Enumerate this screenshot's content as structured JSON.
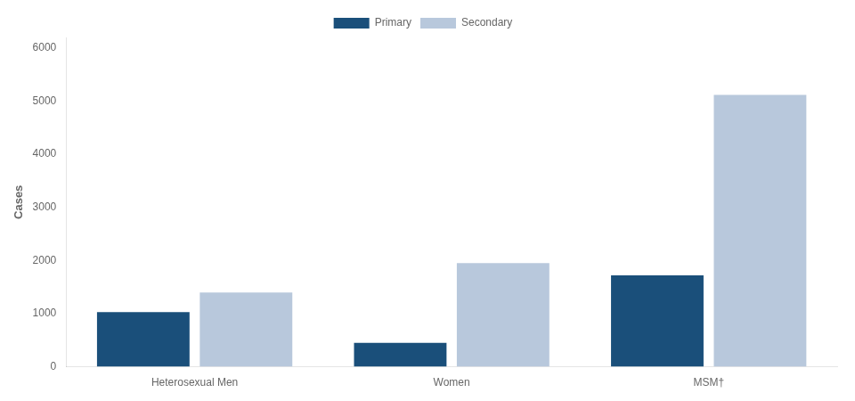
{
  "chart_data": {
    "type": "bar",
    "ylabel": "Cases",
    "categories": [
      "Heterosexual Men",
      "Women",
      "MSM†"
    ],
    "series": [
      {
        "name": "Primary",
        "color": "#1a4f7a",
        "values": [
          1030,
          450,
          1720
        ]
      },
      {
        "name": "Secondary",
        "color": "#b8c8dc",
        "values": [
          1400,
          1950,
          5120
        ]
      }
    ],
    "ylim": [
      0,
      6200
    ],
    "yticks": [
      0,
      1000,
      2000,
      3000,
      4000,
      5000,
      6000
    ],
    "grid": false,
    "legend": "top"
  }
}
